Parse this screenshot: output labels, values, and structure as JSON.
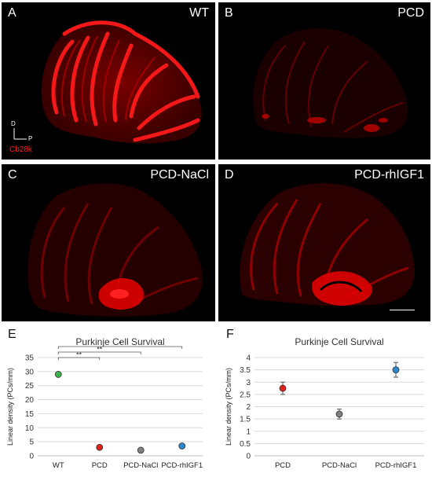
{
  "panels": {
    "a": {
      "letter": "A",
      "title": "WT"
    },
    "b": {
      "letter": "B",
      "title": "PCD"
    },
    "c": {
      "letter": "C",
      "title": "PCD-NaCl"
    },
    "d": {
      "letter": "D",
      "title": "PCD-rhIGF1"
    }
  },
  "orientation": {
    "dorsal": "D",
    "posterior": "P",
    "stain": "Cb28k"
  },
  "chart_data": [
    {
      "panel_letter": "E",
      "type": "scatter",
      "title": "Purkinje Cell Survival",
      "ylabel": "Linear density (PCs/mm)",
      "xlabel": "",
      "categories": [
        "WT",
        "PCD",
        "PCD-NaCl",
        "PCD-rhIGF1"
      ],
      "values": [
        29,
        3,
        2,
        3.5
      ],
      "point_colors": [
        "#3cb44b",
        "#e0201b",
        "#7f7f7f",
        "#2f86c8"
      ],
      "ylim": [
        0,
        35
      ],
      "yticks": [
        0,
        5,
        10,
        15,
        20,
        25,
        30,
        35
      ],
      "grid": true,
      "significance": [
        {
          "from": "WT",
          "to": "PCD",
          "label": "**"
        },
        {
          "from": "WT",
          "to": "PCD-NaCl",
          "label": "**"
        },
        {
          "from": "WT",
          "to": "PCD-rhIGF1",
          "label": "*"
        }
      ]
    },
    {
      "panel_letter": "F",
      "type": "scatter",
      "title": "Purkinje Cell Survival",
      "ylabel": "Linear density (PCs/mm)",
      "xlabel": "",
      "categories": [
        "PCD",
        "PCD-NaCl",
        "PCD-rhIGF1"
      ],
      "values": [
        2.75,
        1.7,
        3.5
      ],
      "errors": [
        0.25,
        0.2,
        0.3
      ],
      "point_colors": [
        "#e0201b",
        "#7f7f7f",
        "#2f86c8"
      ],
      "ylim": [
        0,
        4
      ],
      "yticks": [
        0,
        0.5,
        1,
        1.5,
        2,
        2.5,
        3,
        3.5,
        4
      ],
      "grid": true
    }
  ]
}
